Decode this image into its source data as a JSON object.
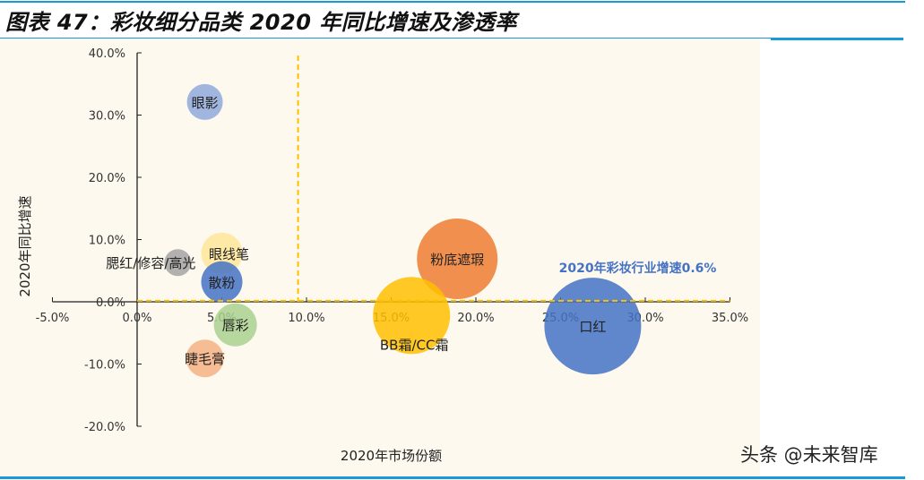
{
  "header": {
    "title": "图表 47：彩妆细分品类 2020 年同比增速及渗透率"
  },
  "watermark": "头条 @未来智库",
  "chart_data": {
    "type": "bubble",
    "title": "",
    "xlabel": "2020年市场份额",
    "ylabel": "2020年同比增速",
    "xlim": [
      -5,
      35
    ],
    "ylim": [
      -20,
      40
    ],
    "x_ticks": [
      "-5.0%",
      "0.0%",
      "5.0%",
      "10.0%",
      "15.0%",
      "20.0%",
      "25.0%",
      "30.0%",
      "35.0%"
    ],
    "y_ticks": [
      "40.0%",
      "30.0%",
      "20.0%",
      "10.0%",
      "0.0%",
      "-10.0%",
      "-20.0%"
    ],
    "grid": false,
    "reference_lines": {
      "vertical_x": 9.5,
      "horizontal_y": 0.6,
      "color": "#FFC000",
      "annotation": "2020年彩妆行业增速0.6%",
      "annotation_color": "#4472C4"
    },
    "series": [
      {
        "label": "眼影",
        "x": 4.0,
        "y": 32.1,
        "size": 20,
        "color": "#8FAADC"
      },
      {
        "label": "腮红/修容/高光",
        "x": 2.4,
        "y": 6.3,
        "size": 15,
        "color": "#A5A5A5"
      },
      {
        "label": "眼线笔",
        "x": 5.0,
        "y": 7.8,
        "size": 23,
        "color": "#FFE699"
      },
      {
        "label": "散粉",
        "x": 5.0,
        "y": 3.2,
        "size": 23,
        "color": "#4472C4"
      },
      {
        "label": "唇彩",
        "x": 5.8,
        "y": -3.7,
        "size": 24,
        "color": "#A9D18E"
      },
      {
        "label": "睫毛膏",
        "x": 4.0,
        "y": -9.1,
        "size": 21,
        "color": "#F4B183"
      },
      {
        "label": "粉底遮瑕",
        "x": 18.9,
        "y": 6.9,
        "size": 45,
        "color": "#ED7D31"
      },
      {
        "label": "BB霜/CC霜",
        "x": 16.2,
        "y": -2.2,
        "size": 43,
        "color": "#FFC000"
      },
      {
        "label": "口红",
        "x": 26.9,
        "y": -3.9,
        "size": 54,
        "color": "#4472C4"
      }
    ]
  }
}
